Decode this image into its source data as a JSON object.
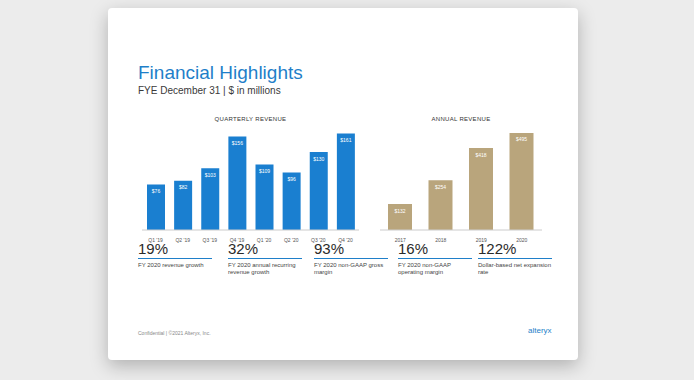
{
  "slide": {
    "title": "Financial Highlights",
    "subtitle": "FYE December 31 | $ in millions",
    "footer": "Confidential | ©2021 Alteryx, Inc.",
    "logo": "alteryx"
  },
  "metrics": [
    {
      "value": "19%",
      "label": "FY 2020 revenue growth"
    },
    {
      "value": "32%",
      "label": "FY 2020 annual recurring revenue growth"
    },
    {
      "value": "93%",
      "label": "FY 2020 non-GAAP gross margin"
    },
    {
      "value": "16%",
      "label": "FY 2020 non-GAAP operating margin"
    },
    {
      "value": "122%",
      "label": "Dollar-based net expansion rate"
    }
  ],
  "chart_data": [
    {
      "type": "bar",
      "title": "QUARTERLY REVENUE",
      "categories": [
        "Q1 '19",
        "Q2 '19",
        "Q3 '19",
        "Q4 '19",
        "Q1 '20",
        "Q2 '20",
        "Q3 '20",
        "Q4 '20"
      ],
      "values": [
        76,
        82,
        103,
        156,
        109,
        96,
        130,
        161
      ],
      "value_labels": [
        "$76",
        "$82",
        "$103",
        "$156",
        "$109",
        "$96",
        "$130",
        "$161"
      ],
      "data_labels": true,
      "color": "#1a7fd0",
      "ylim": [
        0,
        170
      ],
      "tick_labels": "x"
    },
    {
      "type": "bar",
      "title": "ANNUAL REVENUE",
      "categories": [
        "2017",
        "2018",
        "2019",
        "2020"
      ],
      "values": [
        132,
        254,
        418,
        495
      ],
      "value_labels": [
        "$132",
        "$254",
        "$418",
        "$495"
      ],
      "data_labels": true,
      "color": "#b9a57c",
      "ylim": [
        0,
        520
      ],
      "tick_labels": "x"
    }
  ]
}
